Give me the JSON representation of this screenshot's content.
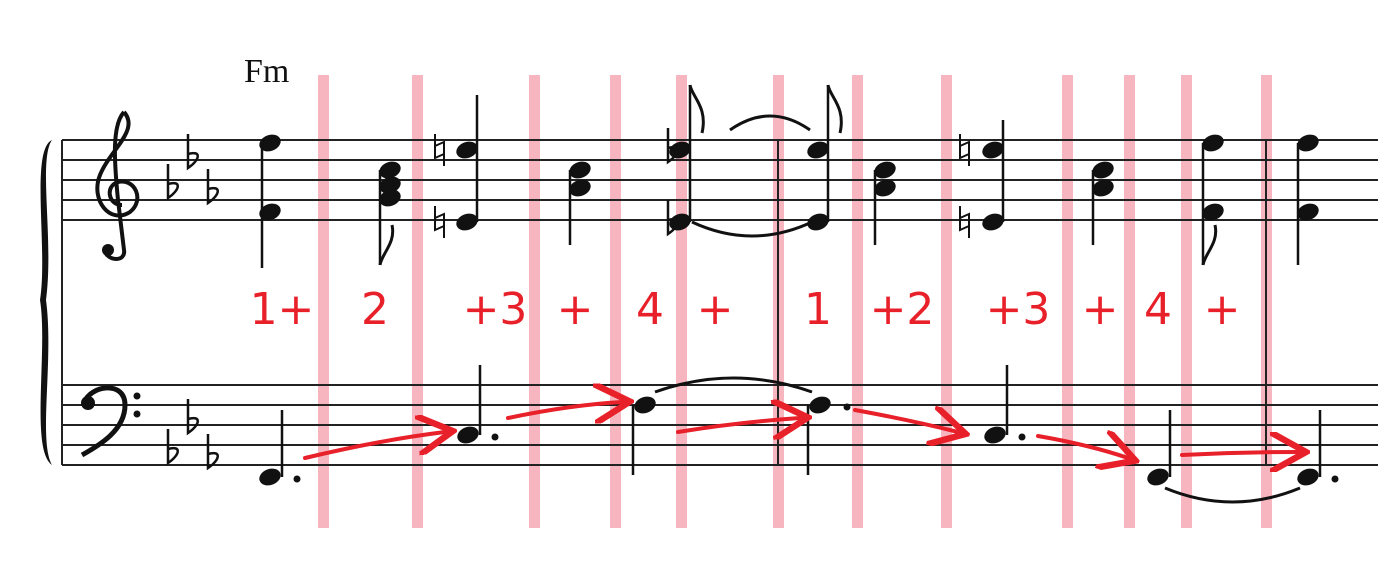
{
  "chord": "Fm",
  "counts": [
    "1+",
    "2",
    "+3",
    "+",
    "4",
    "+",
    "1",
    "+2",
    "+3",
    "+",
    "4",
    "+"
  ]
}
